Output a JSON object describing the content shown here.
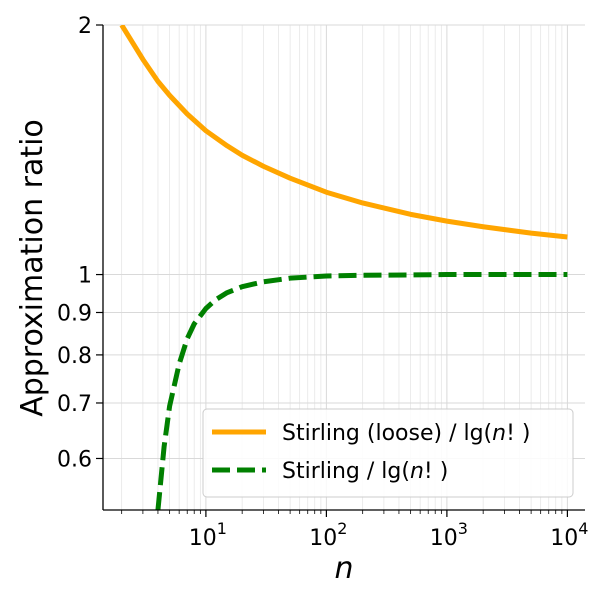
{
  "chart_data": {
    "type": "line",
    "xlabel": "n",
    "ylabel": "Approximation ratio",
    "xscale": "log",
    "yscale": "log",
    "xlim": [
      1.4,
      14000
    ],
    "ylim": [
      0.52,
      2.0
    ],
    "xticks": [
      {
        "value": 10,
        "base": "10",
        "exp": "1"
      },
      {
        "value": 100,
        "base": "10",
        "exp": "2"
      },
      {
        "value": 1000,
        "base": "10",
        "exp": "3"
      },
      {
        "value": 10000,
        "base": "10",
        "exp": "4"
      }
    ],
    "yticks": [
      {
        "value": 2,
        "label": "2"
      },
      {
        "value": 1,
        "label": "1"
      },
      {
        "value": 0.9,
        "label": "0.9"
      },
      {
        "value": 0.8,
        "label": "0.8"
      },
      {
        "value": 0.7,
        "label": "0.7"
      },
      {
        "value": 0.6,
        "label": "0.6"
      }
    ],
    "grid": true,
    "legend_position": "lower-right",
    "series": [
      {
        "name_parts": [
          "Stirling (loose) / lg(",
          "n",
          "! )"
        ],
        "color": "#ffa500",
        "style": "solid",
        "x": [
          2,
          3,
          4,
          5,
          7,
          10,
          15,
          20,
          30,
          50,
          100,
          200,
          500,
          1000,
          2000,
          5000,
          10000
        ],
        "y": [
          2.0,
          1.818,
          1.71,
          1.645,
          1.562,
          1.491,
          1.43,
          1.393,
          1.351,
          1.307,
          1.257,
          1.22,
          1.182,
          1.16,
          1.142,
          1.122,
          1.11
        ]
      },
      {
        "name_parts": [
          "Stirling / lg(",
          "n",
          "! )"
        ],
        "color": "#008000",
        "style": "dashed",
        "x": [
          4,
          4.5,
          5,
          6,
          7,
          8,
          10,
          12,
          15,
          20,
          30,
          50,
          100,
          200,
          500,
          1000,
          10000
        ],
        "y": [
          0.52,
          0.62,
          0.694,
          0.78,
          0.837,
          0.872,
          0.91,
          0.932,
          0.951,
          0.967,
          0.98,
          0.99,
          0.996,
          0.998,
          0.999,
          1.0,
          1.0
        ]
      }
    ]
  }
}
